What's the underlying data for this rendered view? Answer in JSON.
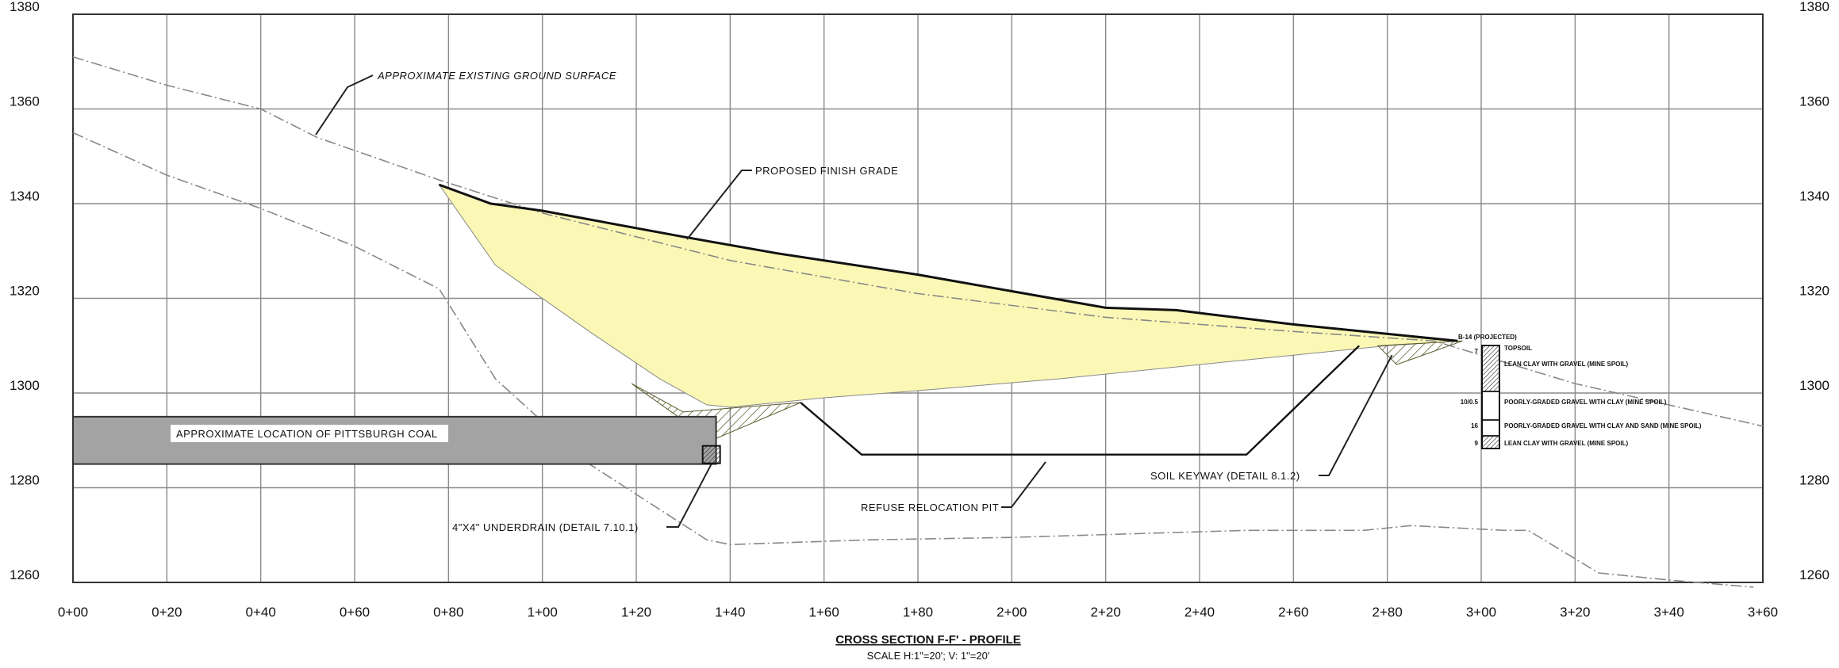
{
  "title": "CROSS SECTION F-F' - PROFILE",
  "scale": "SCALE H:1\"=20'; V: 1\"=20'",
  "chart_data": {
    "type": "profile",
    "x_ticks": [
      "0+00",
      "0+20",
      "0+40",
      "0+60",
      "0+80",
      "1+00",
      "1+20",
      "1+40",
      "1+60",
      "1+80",
      "2+00",
      "2+20",
      "2+40",
      "2+60",
      "2+80",
      "3+00",
      "3+20",
      "3+40",
      "3+60"
    ],
    "x_range": [
      0,
      360
    ],
    "y_ticks": [
      1260,
      1280,
      1300,
      1320,
      1340,
      1360,
      1380
    ],
    "y_range": [
      1260,
      1380
    ],
    "grid": true,
    "series": [
      {
        "key": "existing_ground",
        "points": [
          [
            0,
            1371
          ],
          [
            20,
            1365
          ],
          [
            40,
            1360
          ],
          [
            52,
            1354
          ],
          [
            78,
            1345
          ],
          [
            100,
            1338
          ],
          [
            140,
            1328
          ],
          [
            180,
            1321
          ],
          [
            220,
            1316
          ],
          [
            260,
            1313
          ],
          [
            290,
            1311
          ],
          [
            320,
            1302
          ],
          [
            360,
            1293
          ]
        ]
      },
      {
        "key": "lower_ground",
        "points": [
          [
            0,
            1355
          ],
          [
            20,
            1346
          ],
          [
            40,
            1339
          ],
          [
            60,
            1331
          ],
          [
            78,
            1322
          ],
          [
            90,
            1303
          ],
          [
            110,
            1285
          ],
          [
            135,
            1269
          ],
          [
            140,
            1268
          ],
          [
            170,
            1269
          ],
          [
            200,
            1269.5
          ],
          [
            250,
            1271
          ],
          [
            275,
            1271
          ],
          [
            285,
            1272
          ],
          [
            305,
            1271
          ],
          [
            310,
            1271
          ],
          [
            325,
            1262
          ],
          [
            340,
            1260.5
          ],
          [
            358,
            1259
          ]
        ]
      },
      {
        "key": "proposed_finish_grade",
        "points": [
          [
            78,
            1344
          ],
          [
            89,
            1340
          ],
          [
            100,
            1338.5
          ],
          [
            130,
            1333
          ],
          [
            150,
            1329.5
          ],
          [
            180,
            1325
          ],
          [
            220,
            1318
          ],
          [
            235,
            1317.5
          ],
          [
            260,
            1314.5
          ],
          [
            295,
            1311
          ]
        ]
      },
      {
        "key": "fill_bottom",
        "points": [
          [
            78,
            1344
          ],
          [
            90,
            1327
          ],
          [
            110,
            1313
          ],
          [
            125,
            1303
          ],
          [
            135,
            1297.5
          ],
          [
            140,
            1297
          ],
          [
            150,
            1298
          ],
          [
            160,
            1299
          ],
          [
            180,
            1300.5
          ],
          [
            210,
            1303
          ],
          [
            240,
            1306
          ],
          [
            260,
            1308
          ],
          [
            280,
            1310
          ],
          [
            295,
            1311
          ]
        ]
      },
      {
        "key": "refuse_pit",
        "points": [
          [
            155,
            1298
          ],
          [
            168,
            1287
          ],
          [
            250,
            1287
          ],
          [
            274,
            1310
          ]
        ]
      },
      {
        "key": "keyway_hatch",
        "points": [
          [
            119,
            1302
          ],
          [
            136,
            1290
          ],
          [
            155,
            1298
          ],
          [
            130,
            1296
          ]
        ]
      },
      {
        "key": "keyway_right",
        "points": [
          [
            278,
            1310
          ],
          [
            282,
            1306
          ],
          [
            296,
            1311
          ]
        ]
      }
    ],
    "coal_seam": {
      "label": "APPROXIMATE LOCATION OF PITTSBURGH COAL",
      "x": [
        0,
        137
      ],
      "y": [
        1285,
        1295
      ]
    },
    "underdrain": {
      "x": 136,
      "y": 1287
    }
  },
  "annotations": {
    "existing_ground": "APPROXIMATE EXISTING GROUND SURFACE",
    "finish_grade": "PROPOSED FINISH GRADE",
    "underdrain": "4\"X4\" UNDERDRAIN (DETAIL 7.10.1)",
    "refuse_pit": "REFUSE RELOCATION PIT",
    "soil_keyway": "SOIL KEYWAY (DETAIL 8.1.2)"
  },
  "boring_log": {
    "label": "B-14 (PROJECTED)",
    "layers": [
      {
        "depth": "7",
        "text": "TOPSOIL"
      },
      {
        "depth": "",
        "text": "LEAN CLAY WITH GRAVEL (MINE SPOIL)"
      },
      {
        "depth": "10/0.5",
        "text": "POORLY-GRADED GRAVEL WITH CLAY (MINE SPOIL)"
      },
      {
        "depth": "16",
        "text": "POORLY-GRADED GRAVEL WITH CLAY AND SAND (MINE SPOIL)"
      },
      {
        "depth": "9",
        "text": "LEAN CLAY WITH GRAVEL (MINE SPOIL)"
      }
    ]
  },
  "colors": {
    "fill": "#fbf8b6",
    "coal": "#a3a3a3",
    "grid": "#8a8a8a"
  }
}
